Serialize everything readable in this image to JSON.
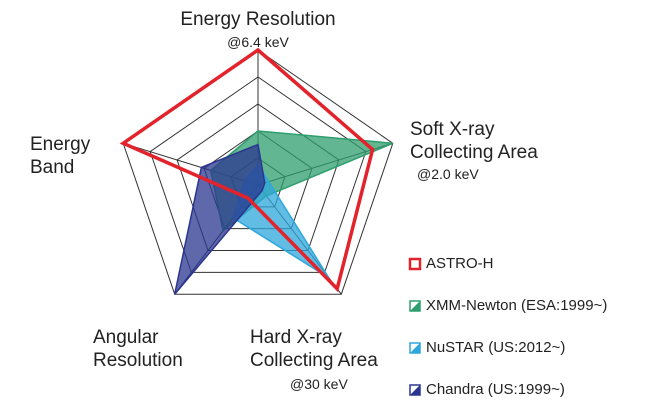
{
  "chart_data": {
    "type": "radar",
    "categories": [
      "Energy Resolution",
      "Soft X-ray Collecting Area",
      "Hard X-ray Collecting Area",
      "Angular Resolution",
      "Energy Band"
    ],
    "category_notes": [
      "@6.4 keV",
      "@2.0 keV",
      "@30 keV",
      null,
      null
    ],
    "rlim": [
      0,
      1
    ],
    "rticks": [
      0.2,
      0.4,
      0.6,
      0.8,
      1
    ],
    "grid": true,
    "series": [
      {
        "name": "ASTRO-H",
        "color": "#e3232b",
        "fill": false,
        "values": [
          1.0,
          0.85,
          0.95,
          0.12,
          1.0
        ]
      },
      {
        "name": "XMM-Newton (ESA:1999~)",
        "color": "#2f9e6e",
        "fill": true,
        "values": [
          0.4,
          1.0,
          0.1,
          0.42,
          0.35
        ]
      },
      {
        "name": "NuSTAR (US:2012~)",
        "color": "#2ea7dc",
        "fill": true,
        "values": [
          0.15,
          0.08,
          0.85,
          0.3,
          0.1
        ]
      },
      {
        "name": "Chandra (US:1999~)",
        "color": "#2b3590",
        "fill": true,
        "values": [
          0.3,
          0.05,
          0.05,
          1.0,
          0.42
        ]
      }
    ],
    "legend": "right"
  }
}
